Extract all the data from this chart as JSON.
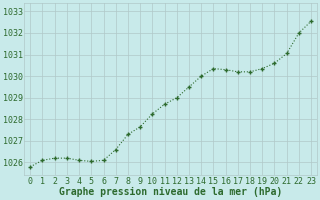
{
  "x": [
    0,
    1,
    2,
    3,
    4,
    5,
    6,
    7,
    8,
    9,
    10,
    11,
    12,
    13,
    14,
    15,
    16,
    17,
    18,
    19,
    20,
    21,
    22,
    23
  ],
  "y": [
    1025.8,
    1026.1,
    1026.2,
    1026.2,
    1026.1,
    1026.05,
    1026.1,
    1026.6,
    1027.3,
    1027.65,
    1028.25,
    1028.7,
    1029.0,
    1029.5,
    1030.0,
    1030.35,
    1030.3,
    1030.2,
    1030.2,
    1030.35,
    1030.6,
    1031.05,
    1032.0,
    1032.55
  ],
  "line_color": "#2d6a2d",
  "marker": "P",
  "bg_color": "#c8eaea",
  "grid_color": "#b0c8c8",
  "xlabel": "Graphe pression niveau de la mer (hPa)",
  "xlabel_color": "#2d6a2d",
  "tick_color": "#2d6a2d",
  "ytick_min": 1026,
  "ytick_max": 1033,
  "ylim_min": 1025.4,
  "ylim_max": 1033.4,
  "xlim_min": -0.5,
  "xlim_max": 23.5,
  "xlabel_fontsize": 7,
  "tick_fontsize": 6
}
